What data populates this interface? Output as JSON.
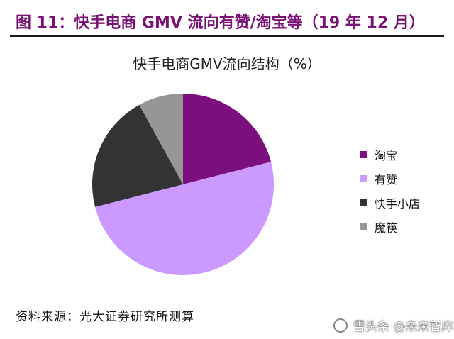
{
  "figure": {
    "title": "图 11：快手电商 GMV 流向有赞/淘宝等（19 年 12 月）",
    "source": "资料来源：光大证券研究所测算",
    "watermark": "雪头条 @未来智库"
  },
  "chart_data": {
    "type": "pie",
    "title": "快手电商GMV流向结构（%）",
    "start_angle_deg": 0,
    "direction": "clockwise",
    "legend_position": "right",
    "slices": [
      {
        "label": "淘宝",
        "value": 21,
        "color": "#7b0f7d"
      },
      {
        "label": "有赞",
        "value": 50,
        "color": "#cb99ff"
      },
      {
        "label": "快手小店",
        "value": 21,
        "color": "#333333"
      },
      {
        "label": "魔筷",
        "value": 8,
        "color": "#969696"
      }
    ]
  }
}
